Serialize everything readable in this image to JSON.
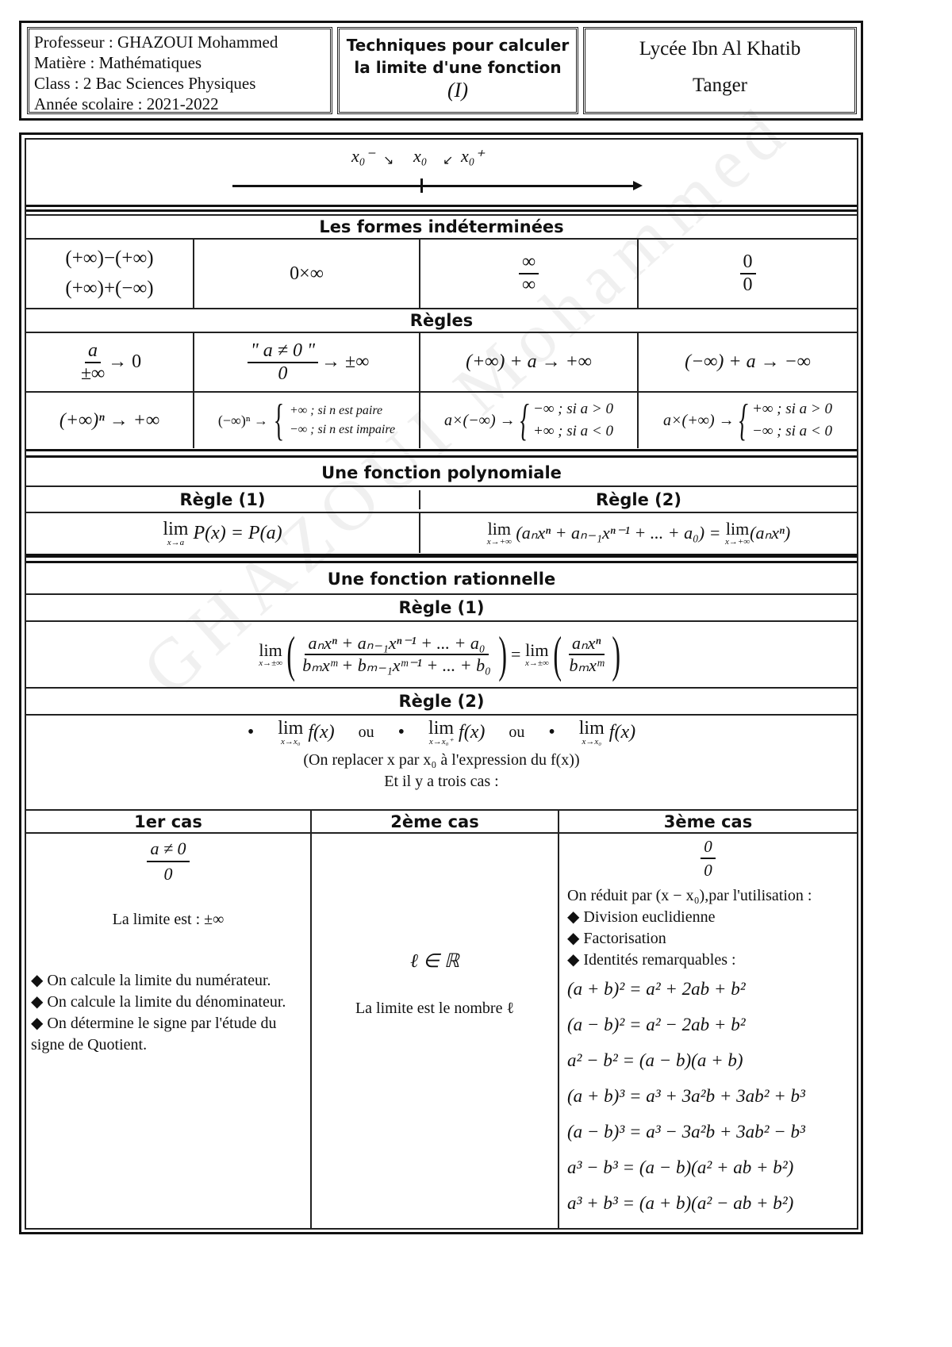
{
  "header": {
    "professor": "Professeur : GHAZOUI Mohammed",
    "subject": "Matière : Mathématiques",
    "class": "Class : 2 Bac Sciences Physiques",
    "year": "Année scolaire : 2021-2022",
    "title_line1": "Techniques pour calculer",
    "title_line2": "la limite d'une fonction",
    "title_num": "(I)",
    "school": "Lycée Ibn Al Khatib",
    "city": "Tanger"
  },
  "numberline": {
    "left": "x₀⁻",
    "center": "x₀",
    "right": "x₀⁺"
  },
  "watermark": "GHAZOUI Mohammed",
  "formes": {
    "title": "Les formes indéterminées",
    "f1a": "(+∞)−(+∞)",
    "f1b": "(+∞)+(−∞)",
    "f2": "0×∞",
    "f3n": "∞",
    "f3d": "∞",
    "f4n": "0",
    "f4d": "0"
  },
  "regles": {
    "title": "Règles",
    "r1n": "a",
    "r1d": "±∞",
    "r1r": "→ 0",
    "r2n": "\" a ≠ 0 \"",
    "r2d": "0",
    "r2r": "→ ±∞",
    "r3": "(+∞) + a → +∞",
    "r4": "(−∞) + a → −∞",
    "r5": "(+∞)ⁿ → +∞",
    "r6l": "(−∞)ⁿ →",
    "r6a": "+∞ ; si n est paire",
    "r6b": "−∞ ; si n est impaire",
    "r7l": "a×(−∞) →",
    "r7a": "−∞ ; si a > 0",
    "r7b": "+∞ ; si a < 0",
    "r8l": "a×(+∞) →",
    "r8a": "+∞ ; si a > 0",
    "r8b": "−∞ ; si a < 0"
  },
  "poly": {
    "title": "Une fonction polynomiale",
    "h1": "Règle (1)",
    "h2": "Règle (2)",
    "lim": "lim",
    "sub1": "x→a",
    "f1": "P(x) = P(a)",
    "sub2": "x→+∞",
    "f2a": "(aₙxⁿ + aₙ₋₁xⁿ⁻¹ + ... + a₀) =",
    "f2b": "(aₙxⁿ)"
  },
  "rat": {
    "title": "Une fonction rationnelle",
    "h1": "Règle (1)",
    "lim": "lim",
    "sub": "x→±∞",
    "num": "aₙxⁿ + aₙ₋₁xⁿ⁻¹ + ... + a₀",
    "den": "bₘxᵐ + bₘ₋₁xᵐ⁻¹ + ... + b₀",
    "eq": "=",
    "num2": "aₙxⁿ",
    "den2": "bₘxᵐ",
    "h2": "Règle (2)",
    "l1sub": "x→x₀",
    "l2sub": "x→x₀⁺",
    "l3sub": "x→x₀",
    "fx": "f(x)",
    "ou": "ou",
    "replace": "(On replacer x par x₀ à l'expression du f(x))",
    "trois": "Et il y a trois cas :"
  },
  "cases": {
    "h1": "1er cas",
    "h2": "2ème cas",
    "h3": "3ème cas",
    "c1n": "a ≠ 0",
    "c1d": "0",
    "c1lim": "La limite est :  ±∞",
    "c1b": [
      "◆ On calcule la limite du numérateur.",
      "◆ On calcule la limite du dénominateur.",
      "◆ On détermine le signe par l'étude du signe de Quotient."
    ],
    "c2a": "ℓ ∈ ℝ",
    "c2b": "La limite est le nombre  ℓ",
    "c3n": "0",
    "c3d": "0",
    "c3a": "On réduit par (x − x₀),par l'utilisation :",
    "c3b": [
      "◆ Division euclidienne",
      "◆ Factorisation",
      "◆ Identités remarquables :"
    ],
    "ids": [
      "(a + b)² = a² + 2ab + b²",
      "(a − b)² = a² − 2ab + b²",
      "a² − b² = (a − b)(a + b)",
      "(a + b)³ = a³ + 3a²b + 3ab² + b³",
      "(a − b)³ = a³ − 3a²b + 3ab² − b³",
      "a³ − b³ = (a − b)(a² + ab + b²)",
      "a³ + b³ = (a + b)(a² − ab + b²)"
    ]
  }
}
